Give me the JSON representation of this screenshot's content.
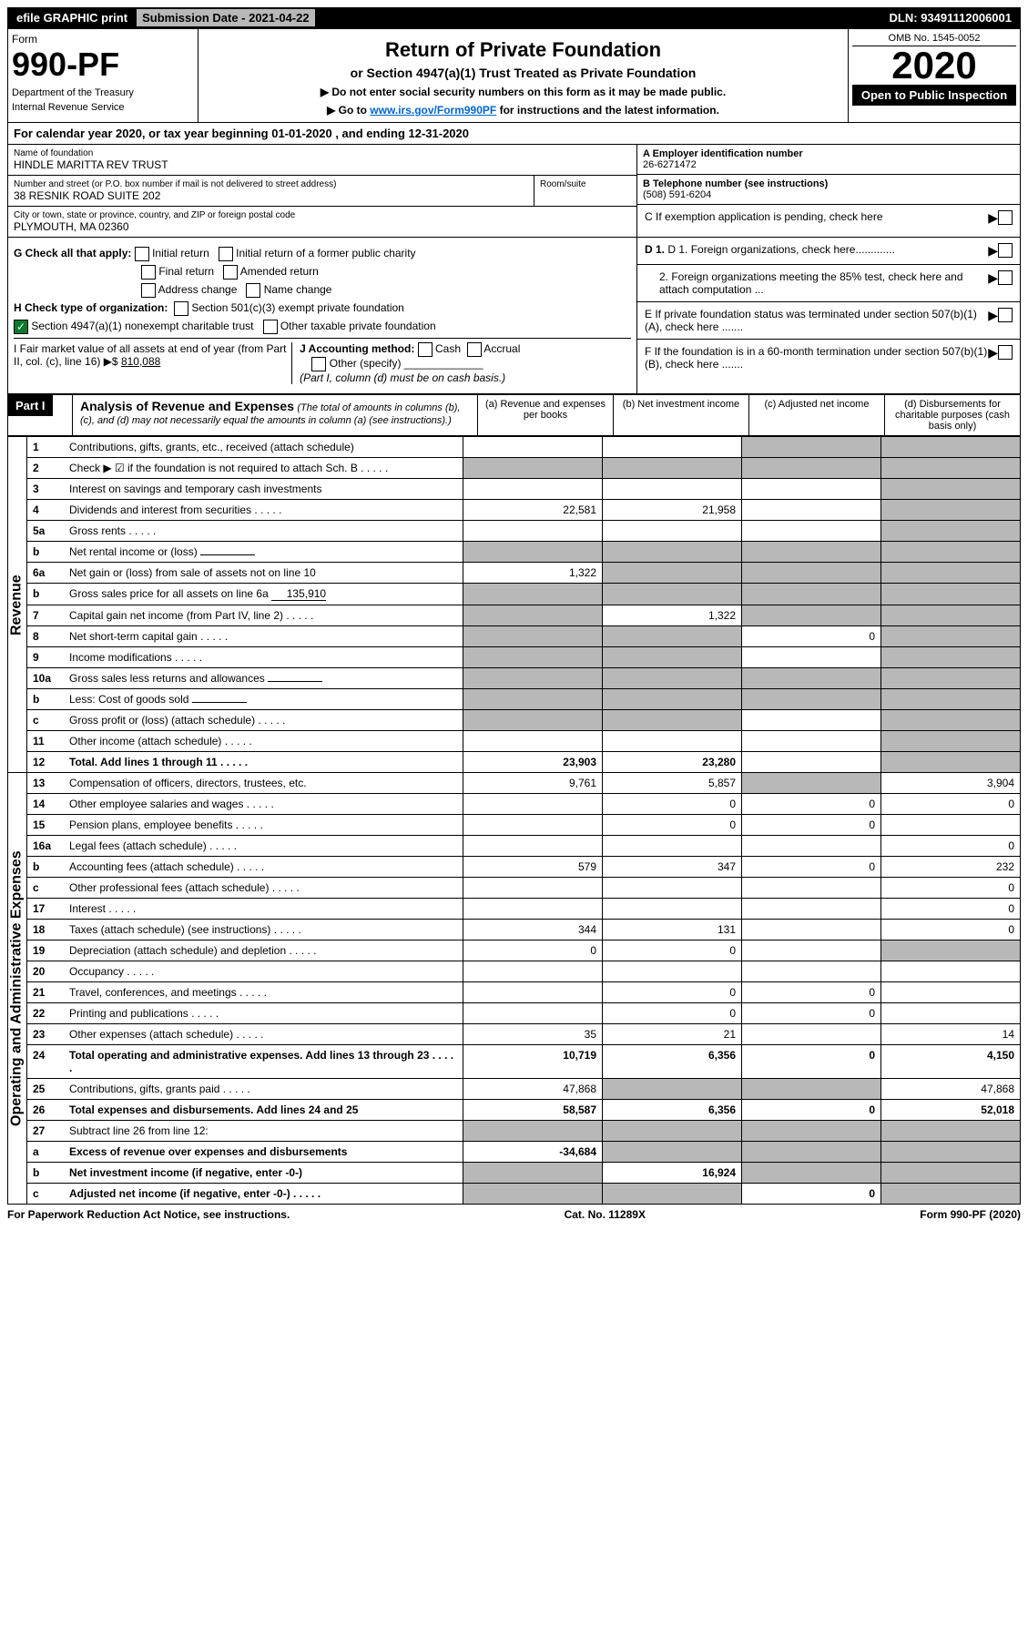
{
  "topbar": {
    "efile": "efile GRAPHIC print",
    "submission_label": "Submission Date - 2021-04-22",
    "dln": "DLN: 93491112006001"
  },
  "header": {
    "form_word": "Form",
    "form_num": "990-PF",
    "dept": "Department of the Treasury",
    "irs": "Internal Revenue Service",
    "title": "Return of Private Foundation",
    "subtitle": "or Section 4947(a)(1) Trust Treated as Private Foundation",
    "note1": "▶ Do not enter social security numbers on this form as it may be made public.",
    "note2_pre": "▶ Go to ",
    "note2_link": "www.irs.gov/Form990PF",
    "note2_post": " for instructions and the latest information.",
    "omb": "OMB No. 1545-0052",
    "year": "2020",
    "open_pub": "Open to Public Inspection"
  },
  "calyear": "For calendar year 2020, or tax year beginning 01-01-2020          , and ending 12-31-2020",
  "entity": {
    "name_label": "Name of foundation",
    "name": "HINDLE MARITTA REV TRUST",
    "addr_label": "Number and street (or P.O. box number if mail is not delivered to street address)",
    "addr": "38 RESNIK ROAD SUITE 202",
    "room_label": "Room/suite",
    "city_label": "City or town, state or province, country, and ZIP or foreign postal code",
    "city": "PLYMOUTH, MA  02360"
  },
  "right_info": {
    "a_label": "A Employer identification number",
    "a_val": "26-6271472",
    "b_label": "B Telephone number (see instructions)",
    "b_val": "(508) 591-6204",
    "c_label": "C If exemption application is pending, check here",
    "d1_label": "D 1. Foreign organizations, check here.............",
    "d2_label": "2. Foreign organizations meeting the 85% test, check here and attach computation ...",
    "e_label": "E  If private foundation status was terminated under section 507(b)(1)(A), check here .......",
    "f_label": "F  If the foundation is in a 60-month termination under section 507(b)(1)(B), check here ......."
  },
  "checks": {
    "g_label": "G Check all that apply:",
    "g_opts": [
      "Initial return",
      "Initial return of a former public charity",
      "Final return",
      "Amended return",
      "Address change",
      "Name change"
    ],
    "h_label": "H Check type of organization:",
    "h_opt1": "Section 501(c)(3) exempt private foundation",
    "h_opt2": "Section 4947(a)(1) nonexempt charitable trust",
    "h_opt3": "Other taxable private foundation",
    "i_label": "I Fair market value of all assets at end of year (from Part II, col. (c), line 16) ▶$",
    "i_val": "810,088",
    "j_label": "J Accounting method:",
    "j_opts": [
      "Cash",
      "Accrual",
      "Other (specify)"
    ],
    "j_note": "(Part I, column (d) must be on cash basis.)"
  },
  "part1": {
    "label": "Part I",
    "title": "Analysis of Revenue and Expenses",
    "note": "(The total of amounts in columns (b), (c), and (d) may not necessarily equal the amounts in column (a) (see instructions).)",
    "col_a": "(a)   Revenue and expenses per books",
    "col_b": "(b)   Net investment income",
    "col_c": "(c)   Adjusted net income",
    "col_d": "(d)  Disbursements for charitable purposes (cash basis only)"
  },
  "side_labels": {
    "revenue": "Revenue",
    "expenses": "Operating and Administrative Expenses"
  },
  "lines": [
    {
      "n": "1",
      "desc": "Contributions, gifts, grants, etc., received (attach schedule)",
      "a": "",
      "b": "",
      "c": "shaded",
      "d": "shaded"
    },
    {
      "n": "2",
      "desc": "Check ▶ ☑ if the foundation is not required to attach Sch. B",
      "a": "shaded",
      "b": "shaded",
      "c": "shaded",
      "d": "shaded",
      "dots": true
    },
    {
      "n": "3",
      "desc": "Interest on savings and temporary cash investments",
      "a": "",
      "b": "",
      "c": "",
      "d": "shaded"
    },
    {
      "n": "4",
      "desc": "Dividends and interest from securities",
      "a": "22,581",
      "b": "21,958",
      "c": "",
      "d": "shaded",
      "dots": true
    },
    {
      "n": "5a",
      "desc": "Gross rents",
      "a": "",
      "b": "",
      "c": "",
      "d": "shaded",
      "dots": true
    },
    {
      "n": "b",
      "desc": "Net rental income or (loss)",
      "a": "shaded",
      "b": "shaded",
      "c": "shaded",
      "d": "shaded",
      "inline": true
    },
    {
      "n": "6a",
      "desc": "Net gain or (loss) from sale of assets not on line 10",
      "a": "1,322",
      "b": "shaded",
      "c": "shaded",
      "d": "shaded"
    },
    {
      "n": "b",
      "desc": "Gross sales price for all assets on line 6a",
      "a": "shaded",
      "b": "shaded",
      "c": "shaded",
      "d": "shaded",
      "inline": true,
      "inline_val": "135,910"
    },
    {
      "n": "7",
      "desc": "Capital gain net income (from Part IV, line 2)",
      "a": "shaded",
      "b": "1,322",
      "c": "shaded",
      "d": "shaded",
      "dots": true
    },
    {
      "n": "8",
      "desc": "Net short-term capital gain",
      "a": "shaded",
      "b": "shaded",
      "c": "0",
      "d": "shaded",
      "dots": true
    },
    {
      "n": "9",
      "desc": "Income modifications",
      "a": "shaded",
      "b": "shaded",
      "c": "",
      "d": "shaded",
      "dots": true
    },
    {
      "n": "10a",
      "desc": "Gross sales less returns and allowances",
      "a": "shaded",
      "b": "shaded",
      "c": "shaded",
      "d": "shaded",
      "inline": true
    },
    {
      "n": "b",
      "desc": "Less: Cost of goods sold",
      "a": "shaded",
      "b": "shaded",
      "c": "shaded",
      "d": "shaded",
      "inline": true,
      "dots": true
    },
    {
      "n": "c",
      "desc": "Gross profit or (loss) (attach schedule)",
      "a": "shaded",
      "b": "shaded",
      "c": "",
      "d": "shaded",
      "dots": true
    },
    {
      "n": "11",
      "desc": "Other income (attach schedule)",
      "a": "",
      "b": "",
      "c": "",
      "d": "shaded",
      "dots": true
    },
    {
      "n": "12",
      "desc": "Total. Add lines 1 through 11",
      "a": "23,903",
      "b": "23,280",
      "c": "",
      "d": "shaded",
      "bold": true,
      "dots": true
    }
  ],
  "exp_lines": [
    {
      "n": "13",
      "desc": "Compensation of officers, directors, trustees, etc.",
      "a": "9,761",
      "b": "5,857",
      "c": "shaded",
      "d": "3,904"
    },
    {
      "n": "14",
      "desc": "Other employee salaries and wages",
      "a": "",
      "b": "0",
      "c": "0",
      "d": "0",
      "dots": true
    },
    {
      "n": "15",
      "desc": "Pension plans, employee benefits",
      "a": "",
      "b": "0",
      "c": "0",
      "d": "",
      "dots": true
    },
    {
      "n": "16a",
      "desc": "Legal fees (attach schedule)",
      "a": "",
      "b": "",
      "c": "",
      "d": "0",
      "dots": true
    },
    {
      "n": "b",
      "desc": "Accounting fees (attach schedule)",
      "a": "579",
      "b": "347",
      "c": "0",
      "d": "232",
      "dots": true
    },
    {
      "n": "c",
      "desc": "Other professional fees (attach schedule)",
      "a": "",
      "b": "",
      "c": "",
      "d": "0",
      "dots": true
    },
    {
      "n": "17",
      "desc": "Interest",
      "a": "",
      "b": "",
      "c": "",
      "d": "0",
      "dots": true
    },
    {
      "n": "18",
      "desc": "Taxes (attach schedule) (see instructions)",
      "a": "344",
      "b": "131",
      "c": "",
      "d": "0",
      "dots": true
    },
    {
      "n": "19",
      "desc": "Depreciation (attach schedule) and depletion",
      "a": "0",
      "b": "0",
      "c": "",
      "d": "shaded",
      "dots": true
    },
    {
      "n": "20",
      "desc": "Occupancy",
      "a": "",
      "b": "",
      "c": "",
      "d": "",
      "dots": true
    },
    {
      "n": "21",
      "desc": "Travel, conferences, and meetings",
      "a": "",
      "b": "0",
      "c": "0",
      "d": "",
      "dots": true
    },
    {
      "n": "22",
      "desc": "Printing and publications",
      "a": "",
      "b": "0",
      "c": "0",
      "d": "",
      "dots": true
    },
    {
      "n": "23",
      "desc": "Other expenses (attach schedule)",
      "a": "35",
      "b": "21",
      "c": "",
      "d": "14",
      "dots": true
    },
    {
      "n": "24",
      "desc": "Total operating and administrative expenses. Add lines 13 through 23",
      "a": "10,719",
      "b": "6,356",
      "c": "0",
      "d": "4,150",
      "bold": true,
      "dots": true
    },
    {
      "n": "25",
      "desc": "Contributions, gifts, grants paid",
      "a": "47,868",
      "b": "shaded",
      "c": "shaded",
      "d": "47,868",
      "dots": true
    },
    {
      "n": "26",
      "desc": "Total expenses and disbursements. Add lines 24 and 25",
      "a": "58,587",
      "b": "6,356",
      "c": "0",
      "d": "52,018",
      "bold": true
    },
    {
      "n": "27",
      "desc": "Subtract line 26 from line 12:",
      "a": "shaded",
      "b": "shaded",
      "c": "shaded",
      "d": "shaded"
    },
    {
      "n": "a",
      "desc": "Excess of revenue over expenses and disbursements",
      "a": "-34,684",
      "b": "shaded",
      "c": "shaded",
      "d": "shaded",
      "bold": true
    },
    {
      "n": "b",
      "desc": "Net investment income (if negative, enter -0-)",
      "a": "shaded",
      "b": "16,924",
      "c": "shaded",
      "d": "shaded",
      "bold": true
    },
    {
      "n": "c",
      "desc": "Adjusted net income (if negative, enter -0-)",
      "a": "shaded",
      "b": "shaded",
      "c": "0",
      "d": "shaded",
      "bold": true,
      "dots": true
    }
  ],
  "footer": {
    "left": "For Paperwork Reduction Act Notice, see instructions.",
    "mid": "Cat. No. 11289X",
    "right": "Form 990-PF (2020)"
  }
}
